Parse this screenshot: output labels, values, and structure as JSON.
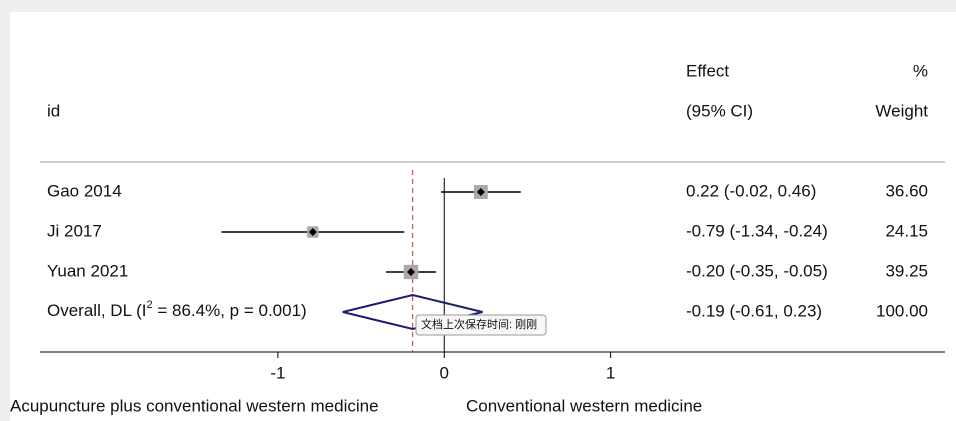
{
  "chart_data": {
    "type": "forest",
    "header": {
      "id": "id",
      "effect": "Effect",
      "ci": "(95% CI)",
      "percent": "%",
      "weight": "Weight"
    },
    "categories": [
      "Gao 2014",
      "Ji 2017",
      "Yuan 2021"
    ],
    "effects": [
      0.22,
      -0.79,
      -0.2
    ],
    "ci_low": [
      -0.02,
      -1.34,
      -0.35
    ],
    "ci_high": [
      0.46,
      -0.24,
      -0.05
    ],
    "effect_labels": [
      "0.22 (-0.02, 0.46)",
      "-0.79 (-1.34, -0.24)",
      "-0.20 (-0.35, -0.05)"
    ],
    "weights": [
      36.6,
      24.15,
      39.25
    ],
    "weight_labels": [
      "36.60",
      "24.15",
      "39.25"
    ],
    "overall": {
      "label": "Overall, DL (I",
      "label_sup": "2",
      "label_rest": " = 86.4%, p = 0.001)",
      "effect": -0.19,
      "ci_low": -0.61,
      "ci_high": 0.23,
      "effect_label": "-0.19 (-0.61, 0.23)",
      "weight": 100,
      "weight_label": "100.00"
    },
    "xlim": [
      -2.43,
      3.01
    ],
    "xticks": [
      -1,
      0,
      1
    ],
    "left_label": "Acupuncture plus conventional western medicine",
    "right_label": "Conventional western medicine",
    "box_color": "#a9a9a9",
    "ci_color": "#000000",
    "diamond_color": "#1a1f6e",
    "overall_line_color": "#c0392b",
    "tooltip": "文档上次保存时间: 刚刚"
  }
}
